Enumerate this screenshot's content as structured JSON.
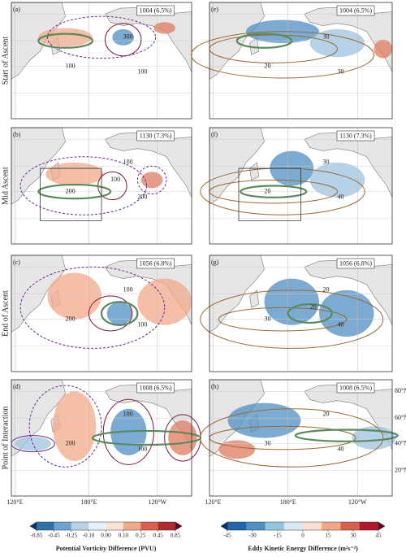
{
  "row_labels": [
    "Start of Ascent",
    "Mid Ascent",
    "End of Ascent",
    "Point of Interaction"
  ],
  "panels": [
    {
      "letter": "(a)",
      "label": "1004 (6.5%)",
      "contour_labels": [
        "300",
        "100",
        "100"
      ]
    },
    {
      "letter": "(b)",
      "label": "1130 (7.3%)",
      "contour_labels": [
        "100",
        "200",
        "200",
        "100"
      ]
    },
    {
      "letter": "(c)",
      "label": "1056 (6.8%)",
      "contour_labels": [
        "100",
        "200",
        "100"
      ]
    },
    {
      "letter": "(d)",
      "label": "1008 (6.5%)",
      "contour_labels": [
        "100",
        "200",
        "100"
      ]
    },
    {
      "letter": "(e)",
      "label": "1004 (6.5%)",
      "contour_labels": [
        "30",
        "20",
        "30"
      ]
    },
    {
      "letter": "(f)",
      "label": "1130 (7.3%)",
      "contour_labels": [
        "30",
        "20",
        "40"
      ]
    },
    {
      "letter": "(g)",
      "label": "1056 (6.8%)",
      "contour_labels": [
        "20",
        "30",
        "40",
        "20"
      ]
    },
    {
      "letter": "(h)",
      "label": "1008 (6.5%)",
      "contour_labels": [
        "20",
        "30",
        "40"
      ]
    }
  ],
  "axis": {
    "lon_labels": [
      "120°E",
      "180°E",
      "120°W"
    ],
    "lat_labels": [
      "80°N",
      "60°N",
      "40°N",
      "20°N"
    ]
  },
  "colorbars": [
    {
      "ticks": [
        "-0.85",
        "-0.45",
        "-0.25",
        "-0.10",
        "0.00",
        "0.10",
        "0.25",
        "0.45",
        "0.85"
      ],
      "label": "Potential Vorticity Difference (PVU)"
    },
    {
      "ticks": [
        "-45",
        "-30",
        "-15",
        "0",
        "15",
        "30",
        "45"
      ],
      "label": "Eddy Kinetic Energy Difference (m²s⁻²)"
    }
  ]
}
